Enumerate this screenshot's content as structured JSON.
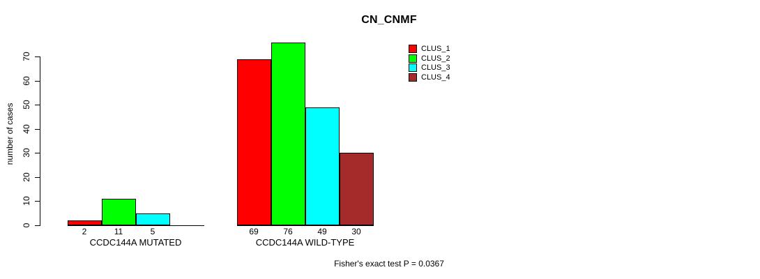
{
  "title": "CN_CNMF",
  "ylabel": "number of cases",
  "footer": "Fisher's exact test P = 0.0367",
  "colors": {
    "clus1": "#ff0000",
    "clus2": "#00ff00",
    "clus3": "#00ffff",
    "clus4": "#a52a2a",
    "axis": "#000000",
    "background": "#ffffff"
  },
  "legend": [
    {
      "label": "CLUS_1",
      "color": "#ff0000"
    },
    {
      "label": "CLUS_2",
      "color": "#00ff00"
    },
    {
      "label": "CLUS_3",
      "color": "#00ffff"
    },
    {
      "label": "CLUS_4",
      "color": "#a52a2a"
    }
  ],
  "chart_data": {
    "type": "bar",
    "title": "CN_CNMF",
    "ylabel": "number of cases",
    "xlabel": "",
    "categories": [
      "CCDC144A MUTATED",
      "CCDC144A WILD-TYPE"
    ],
    "series": [
      {
        "name": "CLUS_1",
        "color": "#ff0000",
        "values": [
          2,
          69
        ]
      },
      {
        "name": "CLUS_2",
        "color": "#00ff00",
        "values": [
          11,
          76
        ]
      },
      {
        "name": "CLUS_3",
        "color": "#00ffff",
        "values": [
          5,
          49
        ]
      },
      {
        "name": "CLUS_4",
        "color": "#a52a2a",
        "values": [
          0,
          30
        ]
      }
    ],
    "value_labels_shown": [
      [
        "2",
        "11",
        "5",
        ""
      ],
      [
        "69",
        "76",
        "49",
        "30"
      ]
    ],
    "yticks": [
      0,
      10,
      20,
      30,
      40,
      50,
      60,
      70
    ],
    "ylim": [
      0,
      76
    ],
    "grid": false,
    "legend_position": "top-right",
    "annotation": "Fisher's exact test P = 0.0367"
  }
}
